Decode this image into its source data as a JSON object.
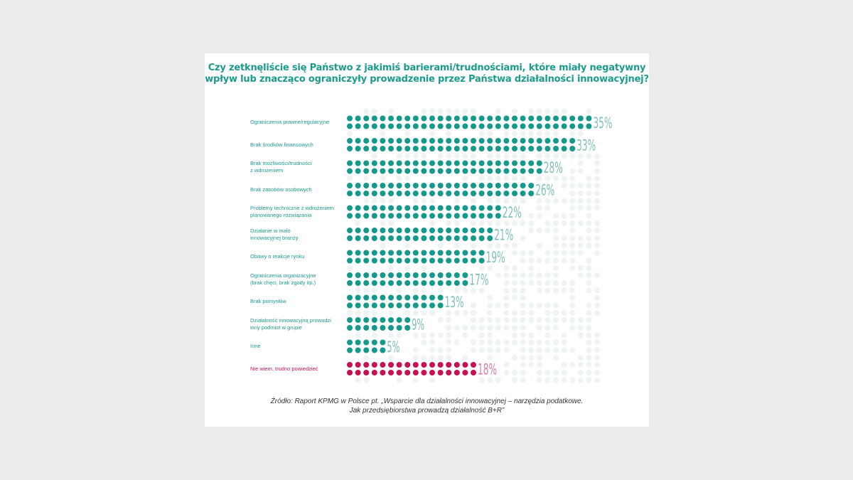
{
  "chart_data": {
    "type": "bar",
    "style": "dot-matrix",
    "title": "Czy zetknęliście się Państwo z jakimiś barierami/trudnościami, które miały negatywny wpływ lub znacząco ograniczyły prowadzenie przez Państwa działalności innowacyjnej?",
    "categories": [
      "Ograniczenia prawne/regulacyjne",
      "Brak środków finansowych",
      "Brak możliwości/trudności\nz wdrożeniem",
      "Brak zasobów osobowych",
      "Problemy techniczne z wdrożeniem\nplanowanego rozwiązania",
      "Działanie w mało\ninnowacyjnej branży",
      "Obawy o reakcje rynku",
      "Ograniczenia organizacyjne\n(brak chęci, brak zgody itp.)",
      "Brak pomysłów",
      "Działalność innowacyjną prowadzi\ninny podmiot w grupie",
      "Inne",
      "Nie wiem, trudno powiedzieć"
    ],
    "values": [
      35,
      33,
      28,
      26,
      22,
      21,
      19,
      17,
      13,
      9,
      5,
      18
    ],
    "value_labels": [
      "35%",
      "33%",
      "28%",
      "26%",
      "22%",
      "21%",
      "19%",
      "17%",
      "13%",
      "9%",
      "5%",
      "18%"
    ],
    "unit": "%",
    "colors": {
      "primary": "#14998b",
      "highlight": "#c8124f",
      "background_dots": "#eef3f3",
      "title": "#1b9a8e"
    },
    "highlight_index": 11,
    "source": "Źródło: Raport KPMG w Polsce pt. „Wsparcie dla działalności innowacyjnej – narzędzia podatkowe.\nJak przedsiębiorstwa prowadzą działalność B+R”"
  }
}
